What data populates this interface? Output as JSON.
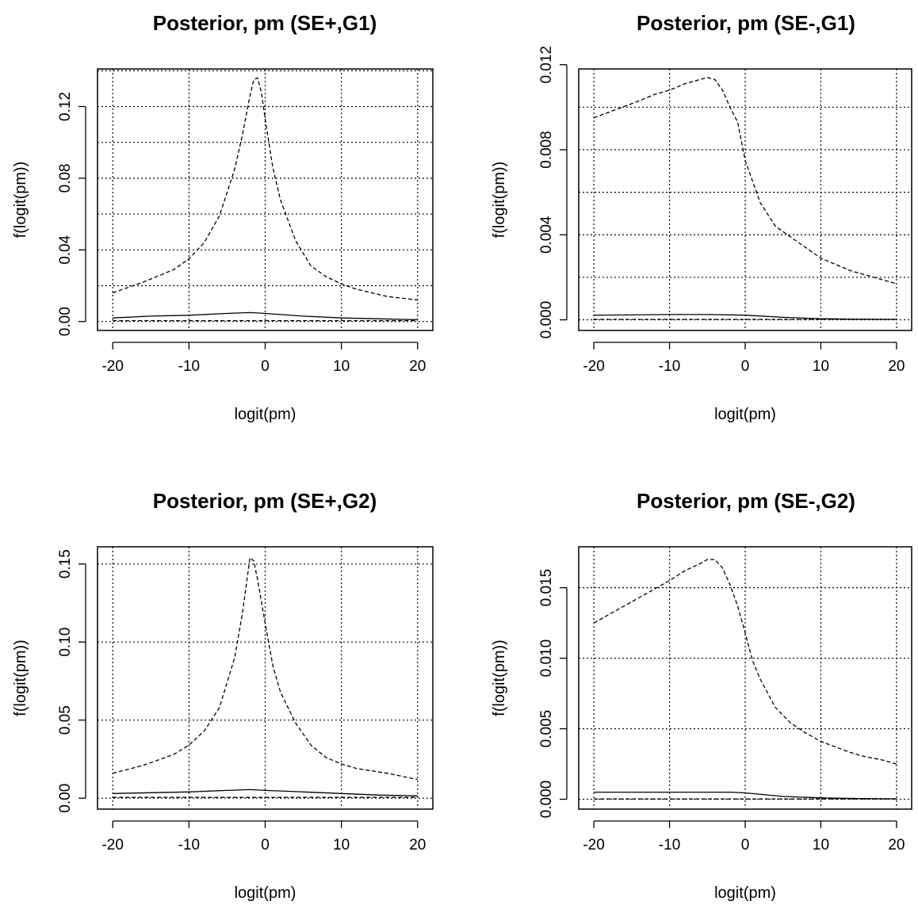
{
  "chart_data": [
    {
      "type": "line",
      "title": "Posterior, pm (SE+,G1)",
      "xlabel": "logit(pm)",
      "ylabel": "f(logit(pm))",
      "xlim": [
        -22,
        22
      ],
      "ylim": [
        -0.005,
        0.141
      ],
      "xticks": [
        -20,
        -10,
        0,
        10,
        20
      ],
      "xtick_labels": [
        "-20",
        "-10",
        "0",
        "10",
        "20"
      ],
      "yticks": [
        0,
        0.04,
        0.08,
        0.12
      ],
      "ytick_labels": [
        "0.00",
        "0.04",
        "0.08",
        "0.12"
      ],
      "grid_x": [
        -20,
        -10,
        0,
        10,
        20
      ],
      "grid_y": [
        0,
        0.02,
        0.04,
        0.06,
        0.08,
        0.1,
        0.12,
        0.14
      ],
      "grid": true,
      "series": [
        {
          "style": "dashed",
          "x": [
            -20,
            -16,
            -12,
            -10,
            -8,
            -6,
            -4,
            -3,
            -2,
            -1.5,
            -1,
            -0.5,
            0,
            1,
            2,
            4,
            6,
            8,
            10,
            12,
            16,
            20
          ],
          "y": [
            0.016,
            0.022,
            0.029,
            0.035,
            0.044,
            0.059,
            0.085,
            0.104,
            0.126,
            0.135,
            0.136,
            0.128,
            0.113,
            0.086,
            0.068,
            0.045,
            0.031,
            0.025,
            0.021,
            0.018,
            0.014,
            0.012
          ]
        },
        {
          "style": "solid",
          "x": [
            -20,
            -15,
            -10,
            -5,
            -2,
            0,
            5,
            10,
            15,
            20
          ],
          "y": [
            0.002,
            0.003,
            0.0035,
            0.0045,
            0.005,
            0.0045,
            0.003,
            0.002,
            0.0015,
            0.001
          ]
        },
        {
          "style": "dashed",
          "x": [
            -20,
            20
          ],
          "y": [
            0.0005,
            0.0005
          ]
        }
      ]
    },
    {
      "type": "line",
      "title": "Posterior, pm (SE-,G1)",
      "xlabel": "logit(pm)",
      "ylabel": "f(logit(pm))",
      "xlim": [
        -22,
        22
      ],
      "ylim": [
        -0.0005,
        0.0118
      ],
      "xticks": [
        -20,
        -10,
        0,
        10,
        20
      ],
      "xtick_labels": [
        "-20",
        "-10",
        "0",
        "10",
        "20"
      ],
      "yticks": [
        0,
        0.004,
        0.008,
        0.012
      ],
      "ytick_labels": [
        "0.000",
        "0.004",
        "0.008",
        "0.012"
      ],
      "grid_x": [
        -20,
        -10,
        0,
        10,
        20
      ],
      "grid_y": [
        0,
        0.002,
        0.004,
        0.006,
        0.008,
        0.01
      ],
      "grid": true,
      "series": [
        {
          "style": "dashed",
          "x": [
            -20,
            -17,
            -14,
            -12,
            -10,
            -8,
            -6,
            -5,
            -4,
            -3,
            -2,
            -1,
            0,
            1,
            2,
            4,
            6,
            8,
            10,
            12,
            14,
            16,
            18,
            20
          ],
          "y": [
            0.0095,
            0.0099,
            0.0103,
            0.0106,
            0.0108,
            0.0111,
            0.0113,
            0.0114,
            0.0113,
            0.0108,
            0.01,
            0.0093,
            0.0075,
            0.0065,
            0.0055,
            0.0044,
            0.0039,
            0.0034,
            0.0029,
            0.0026,
            0.0023,
            0.0021,
            0.0019,
            0.0017
          ]
        },
        {
          "style": "solid",
          "x": [
            -20,
            -15,
            -10,
            -5,
            0,
            5,
            10,
            15,
            20
          ],
          "y": [
            0.00022,
            0.00023,
            0.00025,
            0.00025,
            0.00022,
            0.00012,
            5e-05,
            3e-05,
            2e-05
          ]
        },
        {
          "style": "dashed",
          "x": [
            -20,
            20
          ],
          "y": [
            2e-05,
            2e-05
          ]
        }
      ]
    },
    {
      "type": "line",
      "title": "Posterior, pm (SE+,G2)",
      "xlabel": "logit(pm)",
      "ylabel": "f(logit(pm))",
      "xlim": [
        -22,
        22
      ],
      "ylim": [
        -0.007,
        0.161
      ],
      "xticks": [
        -20,
        -10,
        0,
        10,
        20
      ],
      "xtick_labels": [
        "-20",
        "-10",
        "0",
        "10",
        "20"
      ],
      "yticks": [
        0,
        0.05,
        0.1,
        0.15
      ],
      "ytick_labels": [
        "0.00",
        "0.05",
        "0.10",
        "0.15"
      ],
      "grid_x": [
        -20,
        -10,
        0,
        10,
        20
      ],
      "grid_y": [
        0,
        0.05,
        0.1,
        0.15
      ],
      "grid": true,
      "series": [
        {
          "style": "dashed",
          "x": [
            -20,
            -16,
            -12,
            -10,
            -8,
            -6,
            -4,
            -3,
            -2,
            -1.5,
            -1,
            0,
            1,
            2,
            4,
            6,
            8,
            10,
            12,
            16,
            20
          ],
          "y": [
            0.016,
            0.021,
            0.028,
            0.034,
            0.043,
            0.058,
            0.09,
            0.118,
            0.154,
            0.152,
            0.14,
            0.112,
            0.085,
            0.068,
            0.048,
            0.034,
            0.026,
            0.022,
            0.019,
            0.016,
            0.012
          ]
        },
        {
          "style": "solid",
          "x": [
            -20,
            -15,
            -10,
            -5,
            -2,
            0,
            5,
            10,
            15,
            20
          ],
          "y": [
            0.003,
            0.0035,
            0.004,
            0.005,
            0.0055,
            0.005,
            0.004,
            0.003,
            0.002,
            0.0015
          ]
        },
        {
          "style": "dashed",
          "x": [
            -20,
            20
          ],
          "y": [
            0.0005,
            0.0005
          ]
        }
      ]
    },
    {
      "type": "line",
      "title": "Posterior, pm (SE-,G2)",
      "xlabel": "logit(pm)",
      "ylabel": "f(logit(pm))",
      "xlim": [
        -22,
        22
      ],
      "ylim": [
        -0.0007,
        0.0179
      ],
      "xticks": [
        -20,
        -10,
        0,
        10,
        20
      ],
      "xtick_labels": [
        "-20",
        "-10",
        "0",
        "10",
        "20"
      ],
      "yticks": [
        0,
        0.005,
        0.01,
        0.015
      ],
      "ytick_labels": [
        "0.000",
        "0.005",
        "0.010",
        "0.015"
      ],
      "grid_x": [
        -20,
        -10,
        0,
        10,
        20
      ],
      "grid_y": [
        0,
        0.005,
        0.01,
        0.015
      ],
      "grid": true,
      "series": [
        {
          "style": "dashed",
          "x": [
            -20,
            -17,
            -14,
            -12,
            -10,
            -8,
            -6,
            -5,
            -4,
            -3,
            -2,
            -1,
            0,
            1,
            2,
            4,
            6,
            8,
            10,
            12,
            14,
            16,
            18,
            20
          ],
          "y": [
            0.0125,
            0.0134,
            0.0143,
            0.0149,
            0.0155,
            0.0162,
            0.0167,
            0.017,
            0.017,
            0.0164,
            0.0152,
            0.0137,
            0.0118,
            0.0098,
            0.0085,
            0.0065,
            0.0054,
            0.0047,
            0.0041,
            0.0037,
            0.0033,
            0.003,
            0.0028,
            0.0025
          ]
        },
        {
          "style": "solid",
          "x": [
            -20,
            -15,
            -10,
            -5,
            -2,
            0,
            5,
            10,
            15,
            20
          ],
          "y": [
            0.0005,
            0.0005,
            0.0005,
            0.0005,
            0.0005,
            0.00045,
            0.0002,
            0.0001,
            5e-05,
            3e-05
          ]
        },
        {
          "style": "dashed",
          "x": [
            -20,
            20
          ],
          "y": [
            2e-05,
            2e-05
          ]
        }
      ]
    }
  ]
}
